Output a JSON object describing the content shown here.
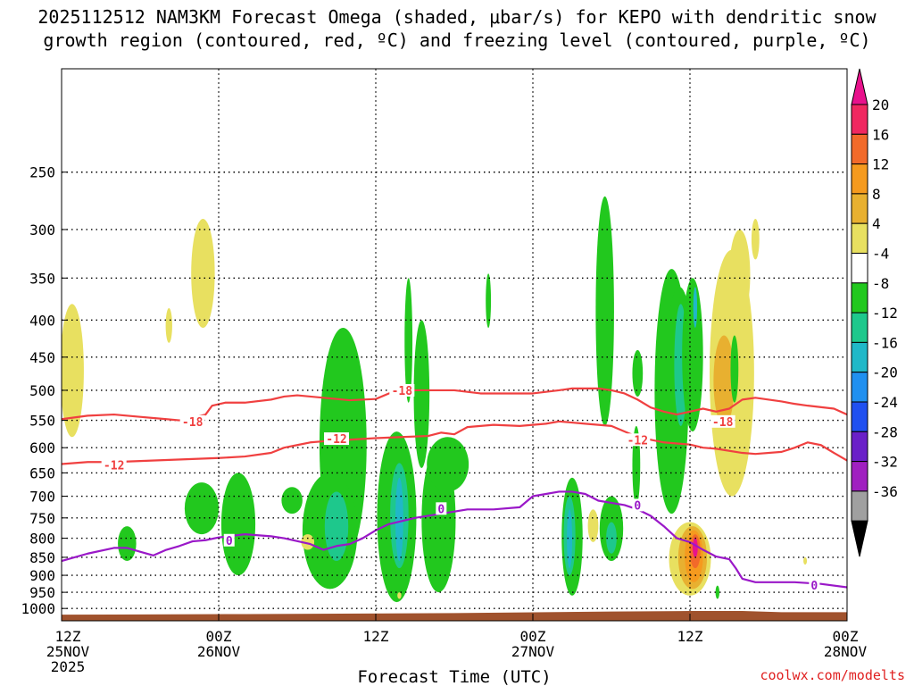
{
  "chart_data": {
    "type": "heatmap",
    "title_line1": "2025112512 NAM3KM Forecast Omega (shaded, μbar/s) for KEPO with dendritic snow",
    "title_line2": "growth region (contoured, red, ºC) and freezing level (contoured, purple, ºC)",
    "xlabel": "Forecast Time (UTC)",
    "credit": "coolwx.com/modelts",
    "x_range_hours": [
      0,
      60
    ],
    "y_range_hpa": [
      1040,
      180
    ],
    "y_ticks": [
      250,
      300,
      350,
      400,
      450,
      500,
      550,
      600,
      650,
      700,
      750,
      800,
      850,
      900,
      950,
      1000
    ],
    "x_ticks": [
      {
        "hour": 0,
        "line1": "12Z",
        "line2": "25NOV",
        "line3": "2025"
      },
      {
        "hour": 12,
        "line1": "00Z",
        "line2": "26NOV",
        "line3": ""
      },
      {
        "hour": 24,
        "line1": "12Z",
        "line2": "",
        "line3": ""
      },
      {
        "hour": 36,
        "line1": "00Z",
        "line2": "27NOV",
        "line3": ""
      },
      {
        "hour": 48,
        "line1": "12Z",
        "line2": "",
        "line3": ""
      },
      {
        "hour": 60,
        "line1": "00Z",
        "line2": "28NOV",
        "line3": ""
      }
    ],
    "colorbar": {
      "labels": [
        "20",
        "16",
        "12",
        "8",
        "4",
        "-4",
        "-8",
        "-12",
        "-16",
        "-20",
        "-24",
        "-28",
        "-32",
        "-36"
      ],
      "colors": [
        "#f02860",
        "#f26a2a",
        "#f59a1e",
        "#e8b030",
        "#e8e060",
        "#ffffff",
        "#22c81e",
        "#1ec88c",
        "#20b8c8",
        "#2090f0",
        "#2050f0",
        "#6a20c8",
        "#a020c0",
        "#a0a0a0"
      ],
      "top_color": "#e8128c",
      "bottom_color": "#000000"
    },
    "surface_color": "#a0522d",
    "dgz_contour_color": "#f04040",
    "freezing_contour_color": "#9a18c8",
    "contours": [
      {
        "label": "-18",
        "color": "#f04040",
        "points": [
          [
            0,
            548
          ],
          [
            2,
            542
          ],
          [
            4,
            540
          ],
          [
            6,
            544
          ],
          [
            8,
            548
          ],
          [
            9,
            550
          ],
          [
            10,
            546
          ],
          [
            11,
            540
          ],
          [
            11.5,
            525
          ],
          [
            12.5,
            520
          ],
          [
            14,
            520
          ],
          [
            16,
            515
          ],
          [
            17,
            510
          ],
          [
            18,
            508
          ],
          [
            20,
            512
          ],
          [
            22,
            516
          ],
          [
            24,
            514
          ],
          [
            25,
            505
          ],
          [
            27,
            500
          ],
          [
            30,
            500
          ],
          [
            32,
            505
          ],
          [
            34,
            505
          ],
          [
            36,
            505
          ],
          [
            38,
            500
          ],
          [
            39,
            497
          ],
          [
            41,
            497
          ],
          [
            42,
            500
          ],
          [
            43,
            505
          ],
          [
            44,
            515
          ],
          [
            45,
            528
          ],
          [
            46,
            535
          ],
          [
            47,
            540
          ],
          [
            48,
            535
          ],
          [
            49,
            530
          ],
          [
            50,
            535
          ],
          [
            51,
            530
          ],
          [
            52,
            515
          ],
          [
            53,
            512
          ],
          [
            55,
            518
          ],
          [
            56,
            522
          ],
          [
            57,
            525
          ],
          [
            59,
            530
          ],
          [
            60,
            540
          ]
        ],
        "labels_at": [
          [
            10,
            552
          ],
          [
            26,
            500
          ],
          [
            50.5,
            552
          ]
        ]
      },
      {
        "label": "-12",
        "color": "#f04040",
        "points": [
          [
            0,
            632
          ],
          [
            2,
            628
          ],
          [
            4,
            628
          ],
          [
            6,
            626
          ],
          [
            8,
            624
          ],
          [
            10,
            622
          ],
          [
            12,
            620
          ],
          [
            14,
            617
          ],
          [
            16,
            610
          ],
          [
            17,
            600
          ],
          [
            18,
            595
          ],
          [
            19,
            590
          ],
          [
            20,
            588
          ],
          [
            22,
            585
          ],
          [
            24,
            582
          ],
          [
            26,
            580
          ],
          [
            28,
            578
          ],
          [
            29,
            572
          ],
          [
            30,
            575
          ],
          [
            31,
            562
          ],
          [
            33,
            558
          ],
          [
            35,
            560
          ],
          [
            37,
            556
          ],
          [
            38,
            552
          ],
          [
            40,
            556
          ],
          [
            42,
            560
          ],
          [
            44,
            580
          ],
          [
            45,
            585
          ],
          [
            46,
            590
          ],
          [
            47,
            592
          ],
          [
            48,
            594
          ],
          [
            49,
            600
          ],
          [
            50,
            602
          ],
          [
            52,
            610
          ],
          [
            53,
            612
          ],
          [
            55,
            608
          ],
          [
            56,
            600
          ],
          [
            57,
            590
          ],
          [
            58,
            595
          ],
          [
            59,
            610
          ],
          [
            60,
            625
          ]
        ],
        "labels_at": [
          [
            4,
            634
          ],
          [
            21,
            583
          ],
          [
            44,
            585
          ]
        ]
      },
      {
        "label": "0",
        "color": "#9a18c8",
        "points": [
          [
            0,
            860
          ],
          [
            2,
            840
          ],
          [
            4,
            825
          ],
          [
            5,
            825
          ],
          [
            6,
            835
          ],
          [
            7,
            845
          ],
          [
            8,
            830
          ],
          [
            9,
            820
          ],
          [
            10,
            808
          ],
          [
            11,
            805
          ],
          [
            12,
            798
          ],
          [
            14,
            790
          ],
          [
            16,
            795
          ],
          [
            17,
            800
          ],
          [
            19,
            815
          ],
          [
            20,
            830
          ],
          [
            21,
            820
          ],
          [
            22,
            815
          ],
          [
            23,
            800
          ],
          [
            24,
            780
          ],
          [
            25,
            765
          ],
          [
            27,
            750
          ],
          [
            29,
            740
          ],
          [
            31,
            730
          ],
          [
            33,
            730
          ],
          [
            35,
            725
          ],
          [
            36,
            700
          ],
          [
            37,
            695
          ],
          [
            38,
            690
          ],
          [
            39,
            690
          ],
          [
            40,
            695
          ],
          [
            41,
            710
          ],
          [
            43,
            720
          ],
          [
            44,
            730
          ],
          [
            45,
            745
          ],
          [
            46,
            770
          ],
          [
            47,
            800
          ],
          [
            48,
            810
          ],
          [
            49,
            830
          ],
          [
            50,
            848
          ],
          [
            51,
            855
          ],
          [
            51.5,
            880
          ],
          [
            52,
            910
          ],
          [
            53,
            920
          ],
          [
            55,
            920
          ],
          [
            56,
            920
          ],
          [
            58,
            925
          ],
          [
            60,
            935
          ]
        ],
        "labels_at": [
          [
            12.8,
            805
          ],
          [
            29,
            728
          ],
          [
            44,
            720
          ],
          [
            57.5,
            928
          ]
        ]
      }
    ],
    "surface_pressure_hpa": [
      [
        0,
        1040
      ],
      [
        0,
        1020
      ],
      [
        14,
        1018
      ],
      [
        30,
        1015
      ],
      [
        42,
        1010
      ],
      [
        48,
        1008
      ],
      [
        52,
        1008
      ],
      [
        55,
        1012
      ],
      [
        60,
        1012
      ],
      [
        60,
        1040
      ]
    ]
  }
}
